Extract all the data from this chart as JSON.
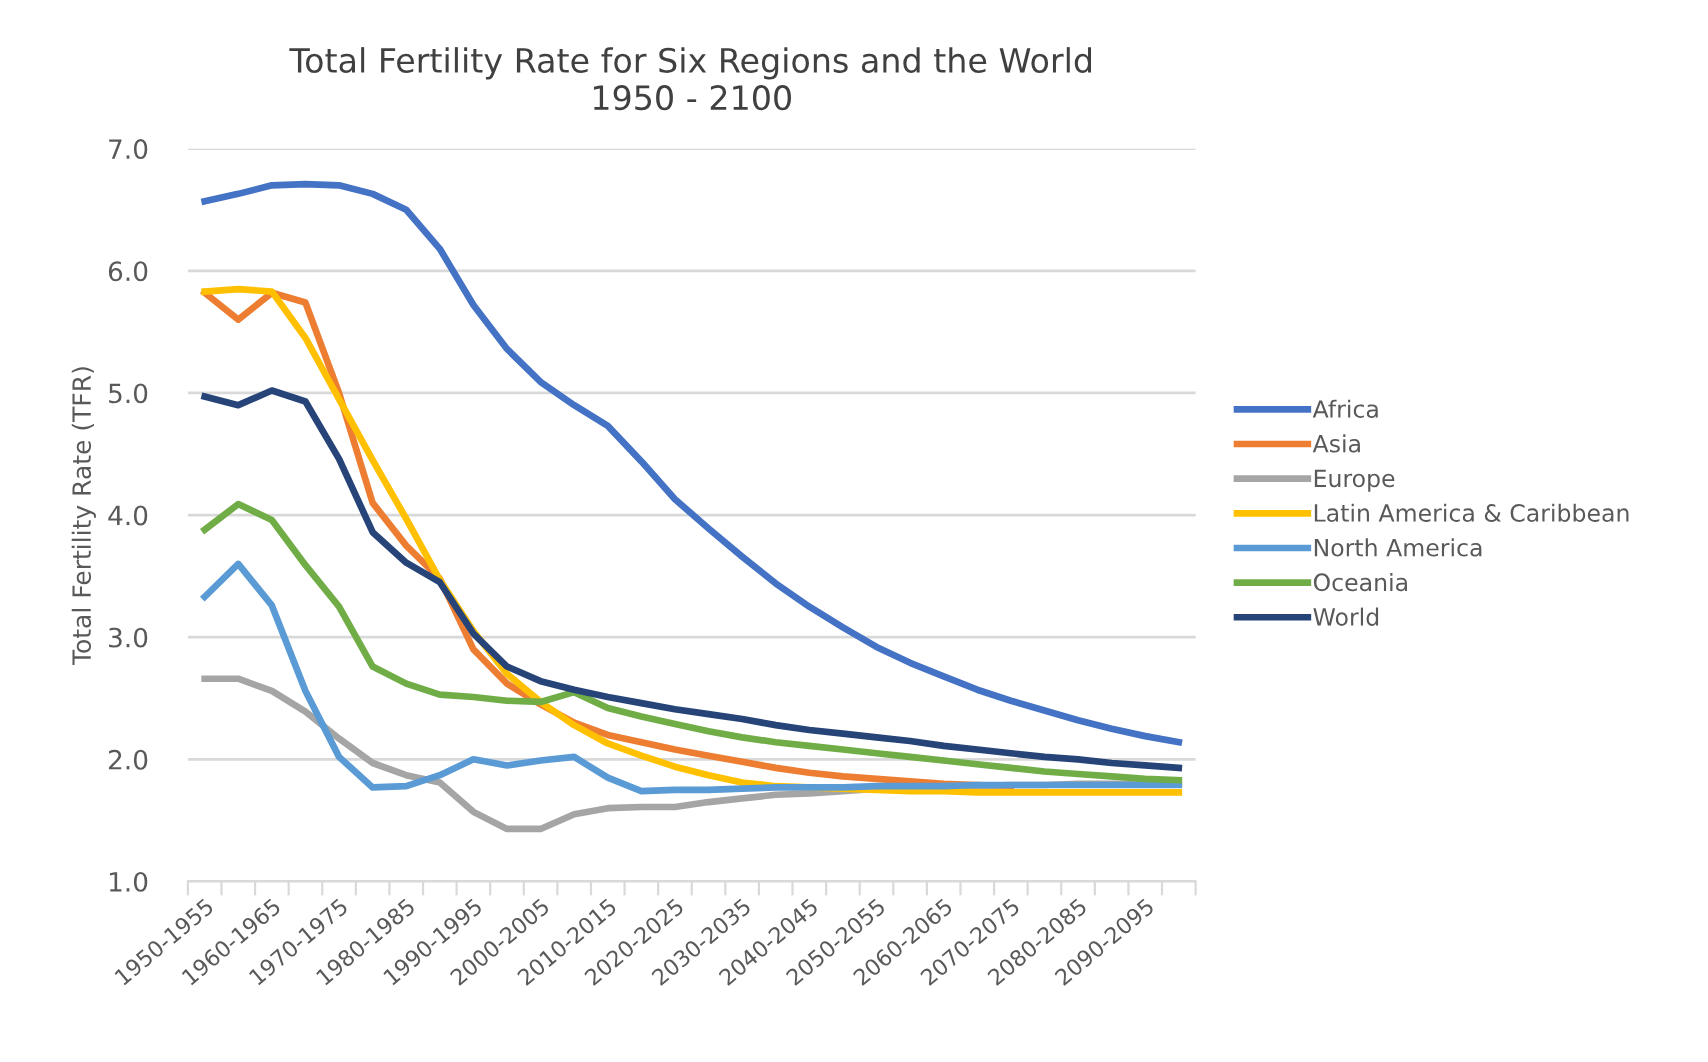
{
  "chart_data": {
    "type": "line",
    "title": "Total Fertility Rate for Six Regions and the World\n1950 - 2100",
    "ylabel": "Total Fertility Rate (TFR)",
    "categories": [
      "1950-1955",
      null,
      "1960-1965",
      null,
      "1970-1975",
      null,
      "1980-1985",
      null,
      "1990-1995",
      null,
      "2000-2005",
      null,
      "2010-2015",
      null,
      "2020-2025",
      null,
      "2030-2035",
      null,
      "2040-2045",
      null,
      "2050-2055",
      null,
      "2060-2065",
      null,
      "2070-2075",
      null,
      "2080-2085",
      null,
      "2090-2095",
      null
    ],
    "ylim": [
      1.0,
      7.0
    ],
    "yticks": [
      {
        "value": 1,
        "label": "1.0"
      },
      {
        "value": 2,
        "label": "2.0"
      },
      {
        "value": 3,
        "label": "3.0"
      },
      {
        "value": 4,
        "label": "4.0"
      },
      {
        "value": 5,
        "label": "5.0"
      },
      {
        "value": 6,
        "label": "6.0"
      },
      {
        "value": 7,
        "label": "7.0"
      }
    ],
    "grid": "y",
    "legend": "right",
    "marker": "none",
    "line_style": "solid",
    "series": [
      {
        "name": "Africa",
        "color": "#4472c4",
        "values": [
          6.57,
          6.63,
          6.7,
          6.71,
          6.7,
          6.63,
          6.5,
          6.18,
          5.72,
          5.36,
          5.09,
          4.9,
          4.73,
          4.44,
          4.13,
          3.89,
          3.66,
          3.44,
          3.25,
          3.08,
          2.92,
          2.79,
          2.68,
          2.57,
          2.48,
          2.4,
          2.32,
          2.25,
          2.19,
          2.14
        ]
      },
      {
        "name": "Asia",
        "color": "#ed7d31",
        "values": [
          5.82,
          5.6,
          5.82,
          5.74,
          5.0,
          4.1,
          3.75,
          3.48,
          2.9,
          2.62,
          2.45,
          2.3,
          2.2,
          2.14,
          2.08,
          2.03,
          1.98,
          1.93,
          1.89,
          1.86,
          1.84,
          1.82,
          1.8,
          1.79,
          1.78,
          null,
          null,
          null,
          null,
          null
        ]
      },
      {
        "name": "Europe",
        "color": "#a5a5a5",
        "values": [
          2.66,
          2.66,
          2.56,
          2.39,
          2.17,
          1.97,
          1.87,
          1.81,
          1.57,
          1.43,
          1.43,
          1.55,
          1.6,
          1.61,
          1.61,
          1.65,
          1.68,
          1.71,
          1.72,
          1.74,
          1.76,
          1.77,
          1.78,
          1.78,
          1.79,
          1.79,
          1.8,
          1.8,
          1.8,
          1.8
        ]
      },
      {
        "name": "Latin America & Caribbean",
        "color": "#ffc000",
        "values": [
          5.83,
          5.85,
          5.83,
          5.45,
          4.95,
          4.45,
          3.97,
          3.47,
          3.05,
          2.7,
          2.47,
          2.28,
          2.13,
          2.03,
          1.94,
          1.87,
          1.81,
          1.78,
          1.77,
          1.76,
          1.75,
          1.74,
          1.74,
          1.73,
          1.73,
          1.73,
          1.73,
          1.73,
          1.73,
          1.73
        ]
      },
      {
        "name": "North America",
        "color": "#5b9bd5",
        "values": [
          3.33,
          3.6,
          3.26,
          2.56,
          2.02,
          1.77,
          1.78,
          1.87,
          2.0,
          1.95,
          1.99,
          2.02,
          1.85,
          1.74,
          1.75,
          1.75,
          1.76,
          1.77,
          1.77,
          1.77,
          1.78,
          1.78,
          1.78,
          1.79,
          1.79,
          1.79,
          1.79,
          1.79,
          1.79,
          1.79
        ]
      },
      {
        "name": "Oceania",
        "color": "#70ad47",
        "values": [
          3.88,
          4.09,
          3.96,
          3.59,
          3.25,
          2.76,
          2.62,
          2.53,
          2.51,
          2.48,
          2.47,
          2.55,
          2.42,
          2.35,
          2.29,
          2.23,
          2.18,
          2.14,
          2.11,
          2.08,
          2.05,
          2.02,
          1.99,
          1.96,
          1.93,
          1.9,
          1.88,
          1.86,
          1.84,
          1.83
        ]
      },
      {
        "name": "World",
        "color": "#264478",
        "values": [
          4.97,
          4.9,
          5.02,
          4.93,
          4.46,
          3.86,
          3.61,
          3.45,
          3.03,
          2.76,
          2.64,
          2.57,
          2.51,
          2.46,
          2.41,
          2.37,
          2.33,
          2.28,
          2.24,
          2.21,
          2.18,
          2.15,
          2.11,
          2.08,
          2.05,
          2.02,
          2.0,
          1.97,
          1.95,
          1.93
        ]
      }
    ]
  }
}
